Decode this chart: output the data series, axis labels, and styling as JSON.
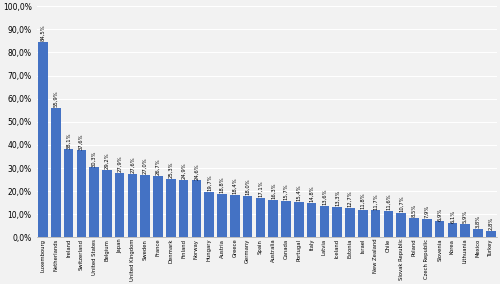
{
  "categories": [
    "Luxembourg",
    "Netherlands",
    "Ireland",
    "Switzerland",
    "United States",
    "Belgium",
    "Japan",
    "United Kingdom",
    "Sweden",
    "France",
    "Denmark",
    "Finland",
    "Norway",
    "Hungary",
    "Austria",
    "Greece",
    "Germany",
    "Spain",
    "Australia",
    "Canada",
    "Portugal",
    "Italy",
    "Latvia",
    "Iceland",
    "Estonia",
    "Israel",
    "New Zealand",
    "Chile",
    "Slovak Republic",
    "Poland",
    "Czech Republic",
    "Slovenia",
    "Korea",
    "Lithuania",
    "Mexico",
    "Turkey"
  ],
  "values": [
    84.5,
    55.9,
    38.1,
    37.6,
    30.3,
    29.2,
    27.9,
    27.6,
    27.0,
    26.7,
    25.3,
    24.9,
    24.6,
    19.7,
    18.8,
    18.4,
    18.0,
    17.1,
    16.3,
    15.7,
    15.4,
    14.8,
    13.6,
    13.3,
    12.7,
    11.8,
    11.7,
    11.6,
    10.7,
    8.5,
    7.9,
    6.9,
    6.1,
    5.9,
    3.8,
    2.8
  ],
  "bar_color": "#4472C4",
  "ylim": [
    0,
    100
  ],
  "yticks": [
    0,
    10,
    20,
    30,
    40,
    50,
    60,
    70,
    80,
    90,
    100
  ],
  "ytick_labels": [
    "0,0%",
    "10,0%",
    "20,0%",
    "30,0%",
    "40,0%",
    "50,0%",
    "60,0%",
    "70,0%",
    "80,0%",
    "90,0%",
    "100,0%"
  ],
  "value_label_fontsize": 3.8,
  "bar_label_fontsize": 3.8,
  "grid_color": "#FFFFFF",
  "bg_color": "#F2F2F2",
  "ax_bg_color": "#F2F2F2"
}
